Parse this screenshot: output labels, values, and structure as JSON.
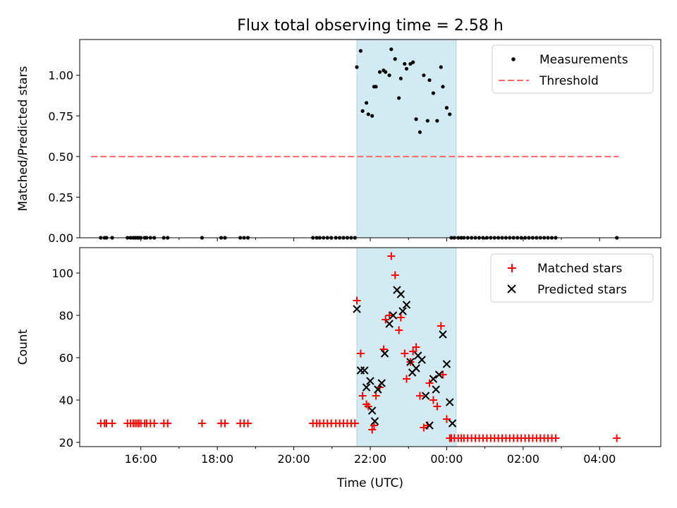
{
  "chart_data": {
    "title": "Flux total observing time = 2.58 h",
    "xlabel": "Time (UTC)",
    "xlim": [
      14.4,
      29.6
    ],
    "x_ticks": [
      {
        "v": 16,
        "label": "16:00"
      },
      {
        "v": 18,
        "label": "18:00"
      },
      {
        "v": 20,
        "label": "20:00"
      },
      {
        "v": 22,
        "label": "22:00"
      },
      {
        "v": 24,
        "label": "00:00"
      },
      {
        "v": 26,
        "label": "02:00"
      },
      {
        "v": 28,
        "label": "04:00"
      }
    ],
    "minor_x_ticks": [
      17,
      19,
      21,
      23,
      25,
      27
    ],
    "shaded_span": [
      21.65,
      24.25
    ],
    "colors": {
      "shade": "#add8e6",
      "matched": "#ff0000",
      "predicted": "#000000",
      "threshold": "#ff6b6b"
    },
    "panels": [
      {
        "type": "scatter",
        "ylabel": "Matched/Predicted stars",
        "ylim": [
          0,
          1.22
        ],
        "yticks": [
          0.0,
          0.25,
          0.5,
          0.75,
          1.0
        ],
        "ytick_labels": [
          "0.00",
          "0.25",
          "0.50",
          "0.75",
          "1.00"
        ],
        "legend": {
          "position": "top-right",
          "entries": [
            "Measurements",
            "Threshold"
          ]
        },
        "threshold": {
          "name": "Threshold",
          "value": 0.5,
          "x": [
            14.7,
            28.5
          ]
        },
        "series": [
          {
            "name": "Measurements",
            "marker": "dot",
            "x": [
              14.95,
              15.05,
              15.1,
              15.25,
              15.65,
              15.73,
              15.8,
              15.85,
              15.9,
              15.95,
              16.0,
              16.1,
              16.15,
              16.25,
              16.35,
              16.6,
              16.7,
              17.6,
              18.1,
              18.2,
              18.6,
              18.7,
              18.8,
              20.5,
              20.6,
              20.68,
              20.78,
              20.88,
              20.98,
              21.1,
              21.2,
              21.3,
              21.4,
              21.5,
              21.6,
              21.65,
              21.75,
              21.8,
              21.9,
              21.95,
              22.05,
              22.1,
              22.15,
              22.25,
              22.35,
              22.4,
              22.5,
              22.55,
              22.65,
              22.75,
              22.8,
              22.9,
              22.95,
              23.05,
              23.12,
              23.2,
              23.3,
              23.4,
              23.5,
              23.55,
              23.65,
              23.75,
              23.85,
              23.9,
              24.0,
              24.08,
              24.12,
              24.2,
              24.3,
              24.38,
              24.45,
              24.55,
              24.65,
              24.75,
              24.85,
              24.95,
              25.05,
              25.15,
              25.25,
              25.35,
              25.45,
              25.55,
              25.65,
              25.75,
              25.85,
              25.95,
              26.05,
              26.15,
              26.25,
              26.35,
              26.45,
              26.55,
              26.65,
              26.75,
              26.85,
              28.45
            ],
            "y": [
              0,
              0,
              0,
              0,
              0,
              0,
              0,
              0,
              0,
              0,
              0,
              0,
              0,
              0,
              0,
              0,
              0,
              0,
              0,
              0,
              0,
              0,
              0,
              0,
              0,
              0,
              0,
              0,
              0,
              0,
              0,
              0,
              0,
              0,
              0,
              1.05,
              1.15,
              0.78,
              0.83,
              0.76,
              0.75,
              0.93,
              0.93,
              1.02,
              1.03,
              1.02,
              1.0,
              1.16,
              1.1,
              0.86,
              0.98,
              1.07,
              1.04,
              1.07,
              1.08,
              0.73,
              0.65,
              1.0,
              0.72,
              0.97,
              0.89,
              0.72,
              1.05,
              0.93,
              0.8,
              0.76,
              0,
              0,
              0,
              0,
              0,
              0,
              0,
              0,
              0,
              0,
              0,
              0,
              0,
              0,
              0,
              0,
              0,
              0,
              0,
              0,
              0,
              0,
              0,
              0,
              0,
              0,
              0,
              0,
              0,
              0
            ]
          }
        ]
      },
      {
        "type": "scatter",
        "ylabel": "Count",
        "ylim": [
          18,
          112
        ],
        "yticks": [
          20,
          40,
          60,
          80,
          100
        ],
        "ytick_labels": [
          "20",
          "40",
          "60",
          "80",
          "100"
        ],
        "legend": {
          "position": "top-right",
          "entries": [
            "Matched stars",
            "Predicted stars"
          ]
        },
        "series": [
          {
            "name": "Matched stars",
            "marker": "plus",
            "x": [
              14.95,
              15.05,
              15.1,
              15.25,
              15.65,
              15.73,
              15.8,
              15.85,
              15.9,
              15.95,
              16.0,
              16.1,
              16.15,
              16.25,
              16.35,
              16.6,
              16.7,
              17.6,
              18.1,
              18.2,
              18.6,
              18.7,
              18.8,
              20.5,
              20.6,
              20.68,
              20.78,
              20.88,
              20.98,
              21.1,
              21.2,
              21.3,
              21.4,
              21.5,
              21.6,
              21.65,
              21.75,
              21.8,
              21.9,
              21.95,
              22.05,
              22.1,
              22.15,
              22.25,
              22.35,
              22.4,
              22.5,
              22.55,
              22.65,
              22.75,
              22.8,
              22.9,
              22.95,
              23.05,
              23.12,
              23.2,
              23.3,
              23.4,
              23.5,
              23.55,
              23.65,
              23.75,
              23.85,
              23.9,
              24.0,
              24.08,
              24.12,
              24.2,
              24.3,
              24.38,
              24.45,
              24.55,
              24.65,
              24.75,
              24.85,
              24.95,
              25.05,
              25.15,
              25.25,
              25.35,
              25.45,
              25.55,
              25.65,
              25.75,
              25.85,
              25.95,
              26.05,
              26.15,
              26.25,
              26.35,
              26.45,
              26.55,
              26.65,
              26.75,
              26.85,
              28.45
            ],
            "y": [
              29,
              29,
              29,
              29,
              29,
              29,
              29,
              29,
              29,
              29,
              29,
              29,
              29,
              29,
              29,
              29,
              29,
              29,
              29,
              29,
              29,
              29,
              29,
              29,
              29,
              29,
              29,
              29,
              29,
              29,
              29,
              29,
              29,
              29,
              29,
              87,
              62,
              42,
              38,
              37,
              26,
              28,
              42,
              46,
              64,
              78,
              80,
              108,
              99,
              73,
              79,
              62,
              50,
              58,
              63,
              65,
              42,
              27,
              28,
              48,
              40,
              37,
              75,
              52,
              31,
              22,
              22,
              22,
              22,
              22,
              22,
              22,
              22,
              22,
              22,
              22,
              22,
              22,
              22,
              22,
              22,
              22,
              22,
              22,
              22,
              22,
              22,
              22,
              22,
              22,
              22,
              22,
              22,
              22,
              22,
              22
            ]
          },
          {
            "name": "Predicted stars",
            "marker": "x",
            "x": [
              21.65,
              21.75,
              21.85,
              21.9,
              22.0,
              22.05,
              22.12,
              22.2,
              22.3,
              22.38,
              22.5,
              22.6,
              22.7,
              22.8,
              22.85,
              22.95,
              23.05,
              23.1,
              23.2,
              23.25,
              23.35,
              23.45,
              23.55,
              23.65,
              23.72,
              23.8,
              23.9,
              24.0,
              24.08,
              24.15
            ],
            "y": [
              83,
              54,
              54,
              46,
              49,
              35,
              30,
              45,
              48,
              62,
              76,
              80,
              92,
              90,
              82,
              85,
              58,
              53,
              55,
              61,
              59,
              42,
              28,
              50,
              45,
              52,
              71,
              57,
              39,
              29
            ]
          }
        ]
      }
    ]
  }
}
